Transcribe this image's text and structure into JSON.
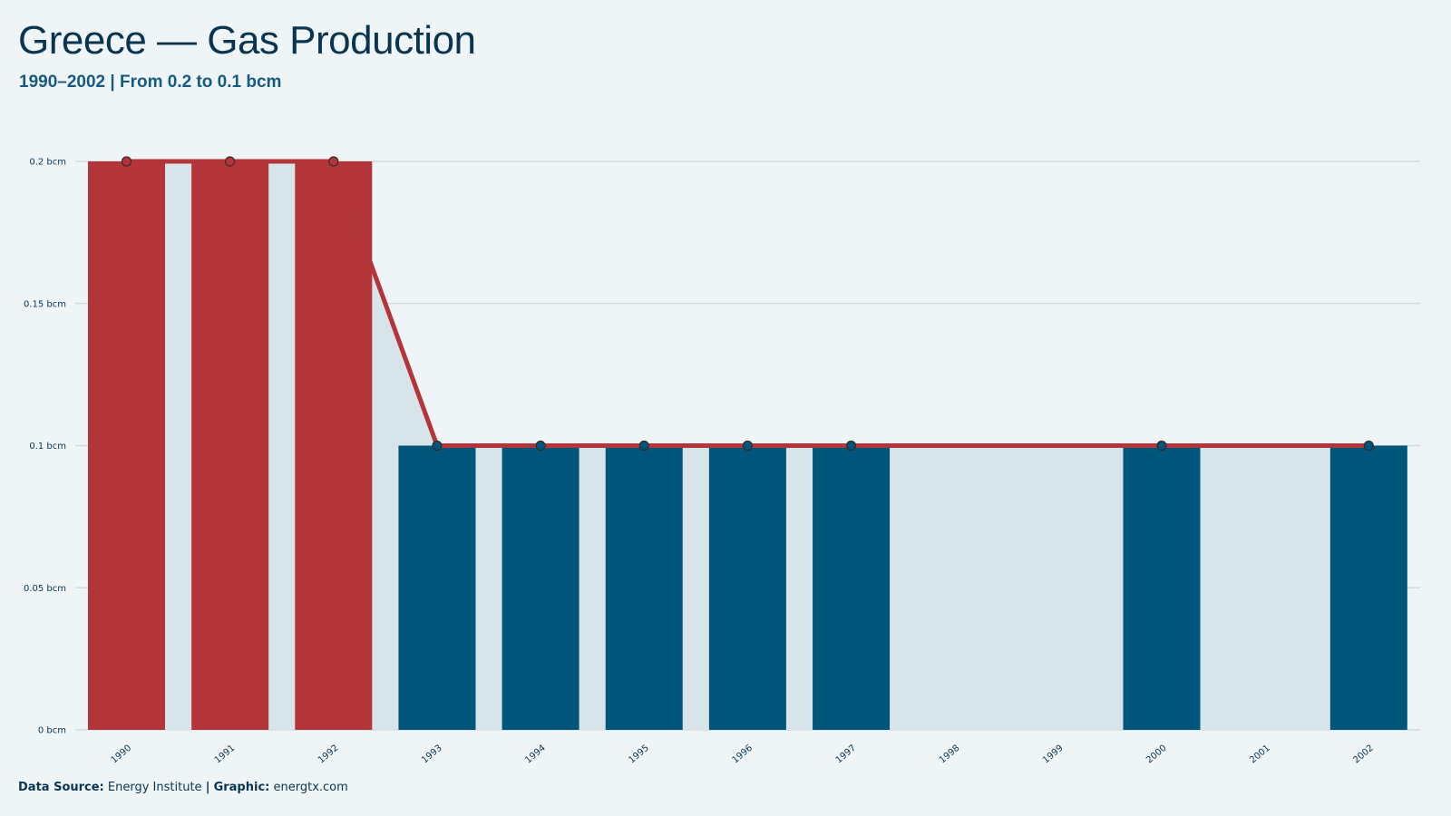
{
  "header": {
    "title": "Greece — Gas Production",
    "subtitle": "1990–2002 | From 0.2 to 0.1 bcm"
  },
  "footer": {
    "source_label": "Data Source:",
    "source_value": "Energy Institute",
    "separator": "|",
    "graphic_label": "Graphic:",
    "graphic_value": "energtx.com"
  },
  "colors": {
    "background": "#eff5f6",
    "area": "#d7e4e9",
    "bar_high": "#b33539",
    "bar_low": "#00557a",
    "line": "#b33539",
    "grid": "#c9d6dc",
    "text": "#0a3550"
  },
  "chart_data": {
    "type": "bar",
    "title": "Greece — Gas Production",
    "subtitle": "1990–2002 | From 0.2 to 0.1 bcm",
    "xlabel": "",
    "ylabel": "",
    "unit": "bcm",
    "ylim": [
      0,
      0.2
    ],
    "yticks": [
      0,
      0.05,
      0.1,
      0.15,
      0.2
    ],
    "ytick_labels": [
      "0 bcm",
      "0.05 bcm",
      "0.1 bcm",
      "0.15 bcm",
      "0.2 bcm"
    ],
    "grid": true,
    "legend": "none",
    "categories": [
      "1990",
      "1991",
      "1992",
      "1993",
      "1994",
      "1995",
      "1996",
      "1997",
      "1998",
      "1999",
      "2000",
      "2001",
      "2002"
    ],
    "bar_values": [
      0.2,
      0.2,
      0.2,
      0.1,
      0.1,
      0.1,
      0.1,
      0.1,
      null,
      null,
      0.1,
      null,
      0.1
    ],
    "line_values": [
      0.2,
      0.2,
      0.2,
      0.1,
      0.1,
      0.1,
      0.1,
      0.1,
      0.1,
      0.1,
      0.1,
      0.1,
      0.1
    ],
    "point_values": [
      0.2,
      0.2,
      0.2,
      0.1,
      0.1,
      0.1,
      0.1,
      0.1,
      null,
      null,
      0.1,
      null,
      0.1
    ]
  }
}
